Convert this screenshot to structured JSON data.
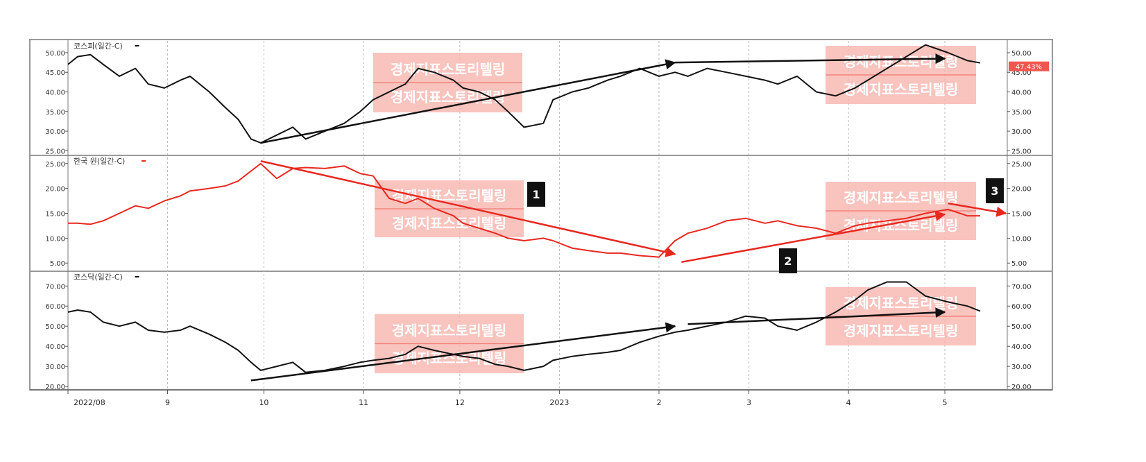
{
  "chart_data": [
    {
      "type": "line",
      "name": "kospi-panel",
      "label": "코스피(일간-C)",
      "color": "#111111",
      "ylim": [
        24,
        53
      ],
      "yticks": [
        "50.00",
        "45.00",
        "40.00",
        "35.00",
        "30.00",
        "25.00"
      ],
      "ytick_values": [
        50,
        45,
        40,
        35,
        30,
        25
      ],
      "last_value_label": "47.43%",
      "series": [
        {
          "name": "코스피(일간-C)",
          "x": [
            "2022-08-01",
            "2022-08-04",
            "2022-08-08",
            "2022-08-12",
            "2022-08-17",
            "2022-08-22",
            "2022-08-26",
            "2022-08-31",
            "2022-09-05",
            "2022-09-08",
            "2022-09-14",
            "2022-09-19",
            "2022-09-23",
            "2022-09-27",
            "2022-09-30",
            "2022-10-05",
            "2022-10-10",
            "2022-10-14",
            "2022-10-20",
            "2022-10-26",
            "2022-10-31",
            "2022-11-04",
            "2022-11-09",
            "2022-11-14",
            "2022-11-18",
            "2022-11-23",
            "2022-11-29",
            "2022-12-02",
            "2022-12-07",
            "2022-12-12",
            "2022-12-16",
            "2022-12-21",
            "2022-12-27",
            "2022-12-30",
            "2023-01-05",
            "2023-01-10",
            "2023-01-16",
            "2023-01-20",
            "2023-01-26",
            "2023-02-01",
            "2023-02-06",
            "2023-02-10",
            "2023-02-16",
            "2023-02-22",
            "2023-02-28",
            "2023-03-06",
            "2023-03-10",
            "2023-03-16",
            "2023-03-22",
            "2023-03-28",
            "2023-04-03",
            "2023-04-07",
            "2023-04-13",
            "2023-04-19",
            "2023-04-25",
            "2023-05-02",
            "2023-05-08",
            "2023-05-12"
          ],
          "values": [
            47,
            49,
            49.5,
            47,
            44,
            46,
            42,
            41,
            43,
            44,
            40,
            36,
            33,
            28,
            27,
            29,
            31,
            28,
            30,
            32,
            35,
            38,
            40,
            42,
            46,
            45,
            43,
            41,
            40,
            38,
            35,
            31,
            32,
            38,
            40,
            41,
            43,
            44,
            46,
            44,
            45,
            44,
            46,
            45,
            44,
            43,
            42,
            44,
            40,
            39,
            41,
            43,
            46,
            49,
            52,
            50,
            48,
            47.4
          ]
        }
      ]
    },
    {
      "type": "line",
      "name": "krw-panel",
      "label": "한국 원(일간-C)",
      "color": "#e8281f",
      "ylim": [
        3.5,
        26.5
      ],
      "yticks": [
        "25.00",
        "20.00",
        "15.00",
        "10.00",
        "5.00"
      ],
      "ytick_values": [
        25,
        20,
        15,
        10,
        5
      ],
      "series": [
        {
          "name": "한국 원(일간-C)",
          "x": [
            "2022-08-01",
            "2022-08-04",
            "2022-08-08",
            "2022-08-12",
            "2022-08-17",
            "2022-08-22",
            "2022-08-26",
            "2022-08-31",
            "2022-09-05",
            "2022-09-08",
            "2022-09-14",
            "2022-09-19",
            "2022-09-23",
            "2022-09-27",
            "2022-09-30",
            "2022-10-05",
            "2022-10-10",
            "2022-10-14",
            "2022-10-20",
            "2022-10-26",
            "2022-10-31",
            "2022-11-04",
            "2022-11-09",
            "2022-11-14",
            "2022-11-18",
            "2022-11-23",
            "2022-11-29",
            "2022-12-02",
            "2022-12-07",
            "2022-12-12",
            "2022-12-16",
            "2022-12-21",
            "2022-12-27",
            "2022-12-30",
            "2023-01-05",
            "2023-01-10",
            "2023-01-16",
            "2023-01-20",
            "2023-01-26",
            "2023-02-01",
            "2023-02-06",
            "2023-02-10",
            "2023-02-16",
            "2023-02-22",
            "2023-02-28",
            "2023-03-06",
            "2023-03-10",
            "2023-03-16",
            "2023-03-22",
            "2023-03-28",
            "2023-04-03",
            "2023-04-07",
            "2023-04-13",
            "2023-04-19",
            "2023-04-25",
            "2023-05-02",
            "2023-05-08",
            "2023-05-12"
          ],
          "values": [
            13,
            13,
            12.8,
            13.5,
            15,
            16.5,
            16,
            17.5,
            18.5,
            19.5,
            20,
            20.5,
            21.5,
            23.5,
            25,
            22,
            24,
            24.2,
            24,
            24.5,
            23,
            22.5,
            18,
            17,
            18,
            16,
            14.5,
            13,
            12,
            11,
            10,
            9.5,
            10,
            9.5,
            8,
            7.5,
            7,
            7,
            6.5,
            6.2,
            9.5,
            11,
            12,
            13.5,
            14,
            13,
            13.5,
            12.5,
            12,
            11,
            12.5,
            13,
            13.5,
            14,
            15,
            15.8,
            14.5,
            14.5
          ]
        }
      ]
    },
    {
      "type": "line",
      "name": "kosdaq-panel",
      "label": "코스닥(일간-C)",
      "color": "#111111",
      "ylim": [
        19,
        77
      ],
      "yticks": [
        "70.00",
        "60.00",
        "50.00",
        "40.00",
        "30.00",
        "20.00"
      ],
      "ytick_values": [
        70,
        60,
        50,
        40,
        30,
        20
      ],
      "series": [
        {
          "name": "코스닥(일간-C)",
          "x": [
            "2022-08-01",
            "2022-08-04",
            "2022-08-08",
            "2022-08-12",
            "2022-08-17",
            "2022-08-22",
            "2022-08-26",
            "2022-08-31",
            "2022-09-05",
            "2022-09-08",
            "2022-09-14",
            "2022-09-19",
            "2022-09-23",
            "2022-09-27",
            "2022-09-30",
            "2022-10-05",
            "2022-10-10",
            "2022-10-14",
            "2022-10-20",
            "2022-10-26",
            "2022-10-31",
            "2022-11-04",
            "2022-11-09",
            "2022-11-14",
            "2022-11-18",
            "2022-11-23",
            "2022-11-29",
            "2022-12-02",
            "2022-12-07",
            "2022-12-12",
            "2022-12-16",
            "2022-12-21",
            "2022-12-27",
            "2022-12-30",
            "2023-01-05",
            "2023-01-10",
            "2023-01-16",
            "2023-01-20",
            "2023-01-26",
            "2023-02-01",
            "2023-02-06",
            "2023-02-10",
            "2023-02-16",
            "2023-02-22",
            "2023-02-28",
            "2023-03-06",
            "2023-03-10",
            "2023-03-16",
            "2023-03-22",
            "2023-03-28",
            "2023-04-03",
            "2023-04-07",
            "2023-04-13",
            "2023-04-19",
            "2023-04-25",
            "2023-05-02",
            "2023-05-08",
            "2023-05-12"
          ],
          "values": [
            57,
            58,
            57,
            52,
            50,
            52,
            48,
            47,
            48,
            50,
            46,
            42,
            38,
            32,
            28,
            30,
            32,
            27,
            28,
            30,
            32,
            33,
            34,
            36,
            40,
            38,
            36,
            35,
            34,
            31,
            30,
            28,
            30,
            33,
            35,
            36,
            37,
            38,
            42,
            45,
            47,
            48,
            50,
            52,
            55,
            54,
            50,
            48,
            52,
            57,
            63,
            68,
            72,
            72,
            65,
            62,
            60,
            57.5
          ]
        }
      ]
    }
  ],
  "x_axis": {
    "labels": [
      "2022/08",
      "9",
      "10",
      "11",
      "12",
      "2023",
      "2",
      "3",
      "4",
      "5"
    ],
    "dates": [
      "2022-08-01",
      "2022-09-01",
      "2022-10-01",
      "2022-11-01",
      "2022-12-01",
      "2023-01-01",
      "2023-02-01",
      "2023-03-01",
      "2023-04-01",
      "2023-05-01"
    ],
    "range": [
      "2022-08-01",
      "2023-05-20"
    ]
  },
  "watermark": {
    "text": "경제지표스토리텔링"
  },
  "badges": [
    "1",
    "2",
    "3"
  ],
  "annotations": [
    {
      "panel": 0,
      "color": "#111111",
      "from": [
        "2022-09-30",
        27
      ],
      "to": [
        "2023-02-06",
        47.5
      ]
    },
    {
      "panel": 0,
      "color": "#111111",
      "from": [
        "2023-02-06",
        47.5
      ],
      "to": [
        "2023-05-01",
        48.5
      ]
    },
    {
      "panel": 1,
      "color": "#e8281f",
      "from": [
        "2022-09-30",
        25.5
      ],
      "to": [
        "2023-02-06",
        6.8
      ]
    },
    {
      "panel": 1,
      "color": "#e8281f",
      "from": [
        "2023-02-08",
        5.2
      ],
      "to": [
        "2023-05-01",
        14.8
      ]
    },
    {
      "panel": 1,
      "color": "#e8281f",
      "from": [
        "2023-05-02",
        17
      ],
      "to": [
        "2023-05-20",
        15
      ]
    },
    {
      "panel": 2,
      "color": "#111111",
      "from": [
        "2022-09-27",
        23
      ],
      "to": [
        "2023-02-06",
        50
      ]
    },
    {
      "panel": 2,
      "color": "#111111",
      "from": [
        "2023-02-10",
        51
      ],
      "to": [
        "2023-05-01",
        57
      ]
    }
  ],
  "colors": {
    "axis": "#999999",
    "grid": "#bbbbbb",
    "watermark_bg": "#f8b4ae",
    "badge": "#111111",
    "price_tag": "#f05550"
  }
}
